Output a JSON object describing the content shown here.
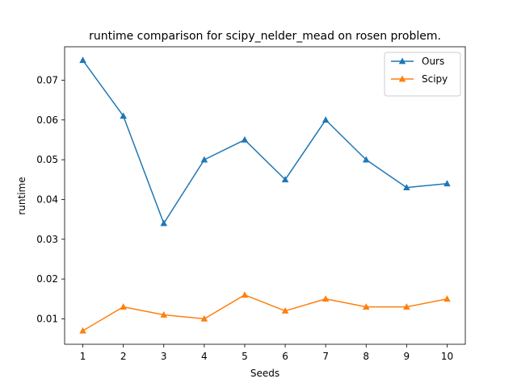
{
  "chart_data": {
    "type": "line",
    "title": "runtime comparison for scipy_nelder_mead on rosen problem.",
    "xlabel": "Seeds",
    "ylabel": "runtime",
    "x": [
      1,
      2,
      3,
      4,
      5,
      6,
      7,
      8,
      9,
      10
    ],
    "xticks": [
      "1",
      "2",
      "3",
      "4",
      "5",
      "6",
      "7",
      "8",
      "9",
      "10"
    ],
    "yticks": [
      "0.01",
      "0.02",
      "0.03",
      "0.04",
      "0.05",
      "0.06",
      "0.07"
    ],
    "ytick_values": [
      0.01,
      0.02,
      0.03,
      0.04,
      0.05,
      0.06,
      0.07
    ],
    "xlim": [
      0.55,
      10.45
    ],
    "ylim": [
      0.0036,
      0.0784
    ],
    "grid": false,
    "legend_position": "top-right",
    "series": [
      {
        "name": "Ours",
        "color": "#1f77b4",
        "marker": "triangle",
        "values": [
          0.075,
          0.061,
          0.034,
          0.05,
          0.055,
          0.045,
          0.06,
          0.05,
          0.043,
          0.044
        ]
      },
      {
        "name": "Scipy",
        "color": "#ff7f0e",
        "marker": "triangle",
        "values": [
          0.007,
          0.013,
          0.011,
          0.01,
          0.016,
          0.012,
          0.015,
          0.013,
          0.013,
          0.015
        ]
      }
    ]
  }
}
